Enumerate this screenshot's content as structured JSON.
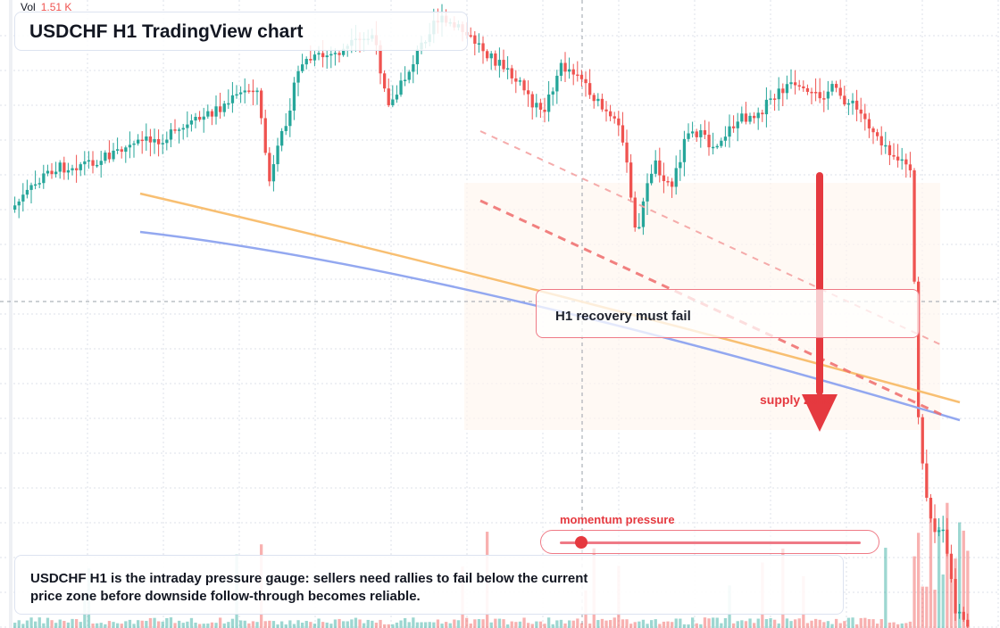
{
  "chart_data": {
    "type": "candlestick",
    "symbol": "USDCHF",
    "timeframe": "H1",
    "title": "USDCHF H1 TradingView chart",
    "volume_label": "Vol",
    "volume_value": "1.51 K",
    "overlays": [
      {
        "name": "",
        "color": "#f7b863",
        "style": "solid"
      },
      {
        "name": "",
        "color": "#93a8f0",
        "style": "solid"
      },
      {
        "name": "",
        "color": "#ef6b6b",
        "style": "dashed"
      },
      {
        "name": "",
        "color": "#f4a3a3",
        "style": "dashed"
      }
    ],
    "annotations": [
      {
        "text": "H1 recovery must fail",
        "type": "callout"
      },
      {
        "text": "supply zone",
        "type": "zone-label"
      },
      {
        "text": "momentum pressure",
        "type": "gauge-label"
      }
    ],
    "momentum_pressure": 0.07,
    "summary": "USDCHF H1 is the intraday pressure gauge: sellers need rallies to fail below the current price zone before downside follow-through becomes reliable.",
    "colors": {
      "up": "#26a69a",
      "down": "#ef5350",
      "accent": "#e5393f"
    }
  }
}
